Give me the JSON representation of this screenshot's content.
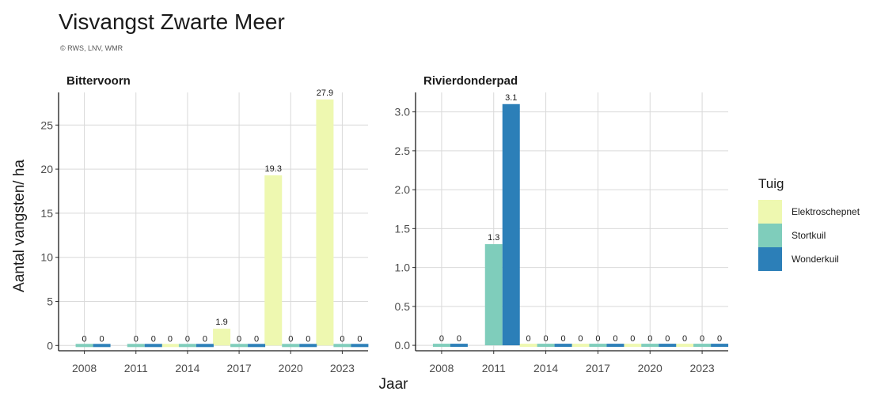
{
  "title": "Visvangst Zwarte Meer",
  "subtitle": "© RWS, LNV, WMR",
  "chart_data": [
    {
      "type": "bar",
      "title": "Bittervoorn",
      "xlabel": "Jaar",
      "ylabel": "Aantal vangsten/ ha",
      "categories": [
        "2008",
        "2011",
        "2014",
        "2017",
        "2020",
        "2023"
      ],
      "ylim": [
        -0.6,
        28.7
      ],
      "yticks": [
        0,
        5,
        10,
        15,
        20,
        25
      ],
      "ytick_labels": [
        "0",
        "5",
        "10",
        "15",
        "20",
        "25"
      ],
      "grid": true,
      "series": [
        {
          "name": "Elektroschepnet",
          "color": "#eef8b0",
          "values": [
            null,
            null,
            0,
            1.9,
            19.3,
            27.9
          ],
          "labels": [
            "",
            "",
            "0",
            "1.9",
            "19.3",
            "27.9"
          ]
        },
        {
          "name": "Stortkuil",
          "color": "#7fcdbb",
          "values": [
            0,
            0,
            0,
            0,
            0,
            0
          ],
          "labels": [
            "0",
            "0",
            "0",
            "0",
            "0",
            "0"
          ]
        },
        {
          "name": "Wonderkuil",
          "color": "#2c7fb8",
          "values": [
            0,
            0,
            0,
            0,
            0,
            0
          ],
          "labels": [
            "0",
            "0",
            "0",
            "0",
            "0",
            "0"
          ]
        }
      ]
    },
    {
      "type": "bar",
      "title": "Rivierdonderpad",
      "xlabel": "Jaar",
      "ylabel": "",
      "categories": [
        "2008",
        "2011",
        "2014",
        "2017",
        "2020",
        "2023"
      ],
      "ylim": [
        -0.07,
        3.25
      ],
      "yticks": [
        0,
        0.5,
        1,
        1.5,
        2,
        2.5,
        3
      ],
      "ytick_labels": [
        "0.0",
        "0.5",
        "1.0",
        "1.5",
        "2.0",
        "2.5",
        "3.0"
      ],
      "grid": true,
      "series": [
        {
          "name": "Elektroschepnet",
          "color": "#eef8b0",
          "values": [
            null,
            null,
            0,
            0,
            0,
            0
          ],
          "labels": [
            "",
            "",
            "0",
            "0",
            "0",
            "0"
          ]
        },
        {
          "name": "Stortkuil",
          "color": "#7fcdbb",
          "values": [
            0,
            1.3,
            0,
            0,
            0,
            0
          ],
          "labels": [
            "0",
            "1.3",
            "0",
            "0",
            "0",
            "0"
          ]
        },
        {
          "name": "Wonderkuil",
          "color": "#2c7fb8",
          "values": [
            0,
            3.1,
            0,
            0,
            0,
            0
          ],
          "labels": [
            "0",
            "3.1",
            "0",
            "0",
            "0",
            "0"
          ]
        }
      ]
    }
  ],
  "legend": {
    "title": "Tuig",
    "placement": "right",
    "items": [
      {
        "label": "Elektroschepnet",
        "color": "#eef8b0"
      },
      {
        "label": "Stortkuil",
        "color": "#7fcdbb"
      },
      {
        "label": "Wonderkuil",
        "color": "#2c7fb8"
      }
    ]
  }
}
